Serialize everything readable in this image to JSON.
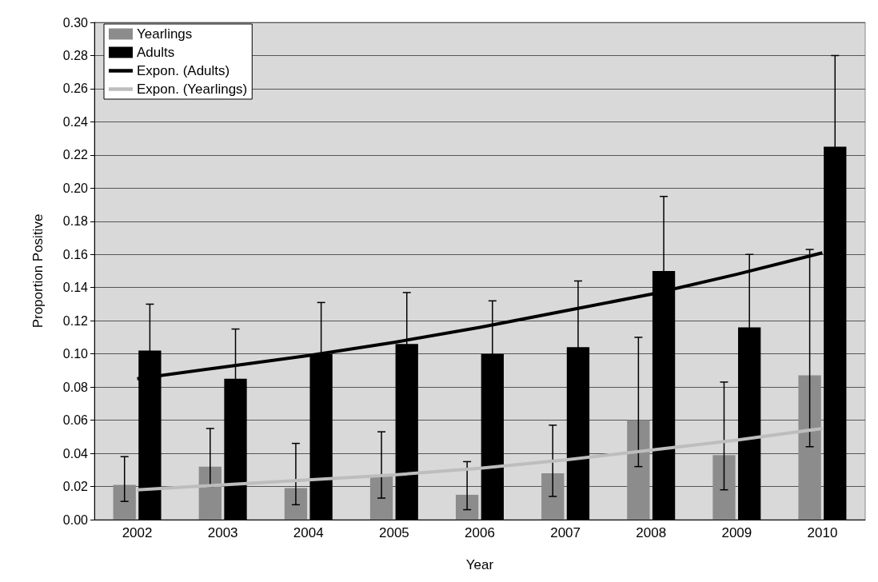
{
  "chart_data": {
    "type": "bar",
    "xlabel": "Year",
    "ylabel": "Proportion Positive",
    "categories": [
      "2002",
      "2003",
      "2004",
      "2005",
      "2006",
      "2007",
      "2008",
      "2009",
      "2010"
    ],
    "series": [
      {
        "name": "Yearlings",
        "color": "#8c8c8c",
        "values": [
          0.021,
          0.032,
          0.019,
          0.026,
          0.015,
          0.028,
          0.06,
          0.039,
          0.087
        ],
        "errors": [
          [
            0.011,
            0.038
          ],
          [
            0.02,
            0.055
          ],
          [
            0.009,
            0.046
          ],
          [
            0.013,
            0.053
          ],
          [
            0.006,
            0.035
          ],
          [
            0.014,
            0.057
          ],
          [
            0.032,
            0.11
          ],
          [
            0.018,
            0.083
          ],
          [
            0.044,
            0.163
          ]
        ]
      },
      {
        "name": "Adults",
        "color": "#000000",
        "values": [
          0.102,
          0.085,
          0.1,
          0.106,
          0.1,
          0.104,
          0.15,
          0.116,
          0.225
        ],
        "errors": [
          0.028,
          0.03,
          0.031,
          0.031,
          0.032,
          0.04,
          0.045,
          0.044,
          0.055
        ]
      },
      {
        "name": "Expon. (Adults)",
        "type": "line",
        "color": "#000000",
        "values": [
          0.085,
          0.092,
          0.099,
          0.107,
          0.116,
          0.126,
          0.136,
          0.148,
          0.161
        ]
      },
      {
        "name": "Expon. (Yearlings)",
        "type": "line",
        "color": "#bdbdbd",
        "values": [
          0.018,
          0.021,
          0.024,
          0.027,
          0.031,
          0.036,
          0.042,
          0.048,
          0.055
        ]
      }
    ],
    "ylim": [
      0,
      0.3
    ],
    "yticks": [
      {
        "value": 0,
        "label": "0.00"
      },
      0.02,
      0.04,
      0.06,
      0.08,
      {
        "value": 0.1,
        "label": "0.10"
      },
      0.12,
      0.14,
      0.16,
      0.18,
      {
        "value": 0.2,
        "label": "0.20"
      },
      0.22,
      0.24,
      0.26,
      0.28,
      {
        "value": 0.3,
        "label": "0.30"
      }
    ],
    "grid": "y",
    "legend": "top left",
    "marker": "none",
    "line_style": "solid"
  }
}
